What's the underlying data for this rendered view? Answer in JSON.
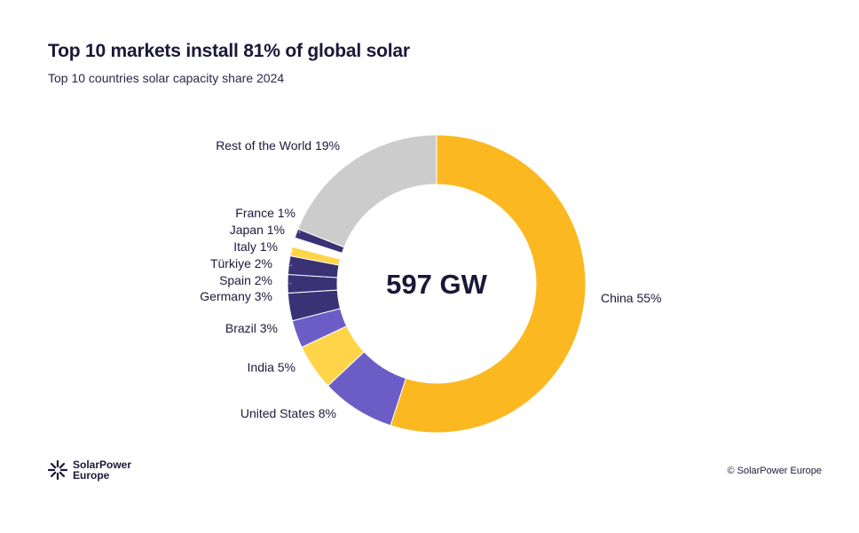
{
  "header": {
    "title": "Top 10 markets install 81% of global solar",
    "subtitle": "Top 10 countries solar capacity share 2024"
  },
  "footer": {
    "logo_line1": "SolarPower",
    "logo_line2": "Europe",
    "copyright": "© SolarPower Europe"
  },
  "colors": {
    "china": "#FBB820",
    "us": "#6C5DC6",
    "india": "#FFD449",
    "brazil": "#6C5DC6",
    "dark": "#3B3276",
    "rest": "#CCCCCC"
  },
  "chart_data": {
    "type": "pie",
    "center_label": "597 GW",
    "slices": [
      {
        "label": "China 55%",
        "value": 55,
        "color": "#FBB820"
      },
      {
        "label": "United States 8%",
        "value": 8,
        "color": "#6C5DC6"
      },
      {
        "label": "India 5%",
        "value": 5,
        "color": "#FFD449"
      },
      {
        "label": "Brazil 3%",
        "value": 3,
        "color": "#6C5DC6"
      },
      {
        "label": "Germany 3%",
        "value": 3,
        "color": "#3B3276"
      },
      {
        "label": "Spain 2%",
        "value": 2,
        "color": "#3B3276"
      },
      {
        "label": "Türkiye 2%",
        "value": 2,
        "color": "#3B3276"
      },
      {
        "label": "Italy 1%",
        "value": 1,
        "color": "#FFD449"
      },
      {
        "label": "Japan 1%",
        "value": 1,
        "color": "#FFFFFF"
      },
      {
        "label": "France 1%",
        "value": 1,
        "color": "#3B3276"
      },
      {
        "label": "Rest of the World 19%",
        "value": 19,
        "color": "#CCCCCC"
      }
    ]
  }
}
